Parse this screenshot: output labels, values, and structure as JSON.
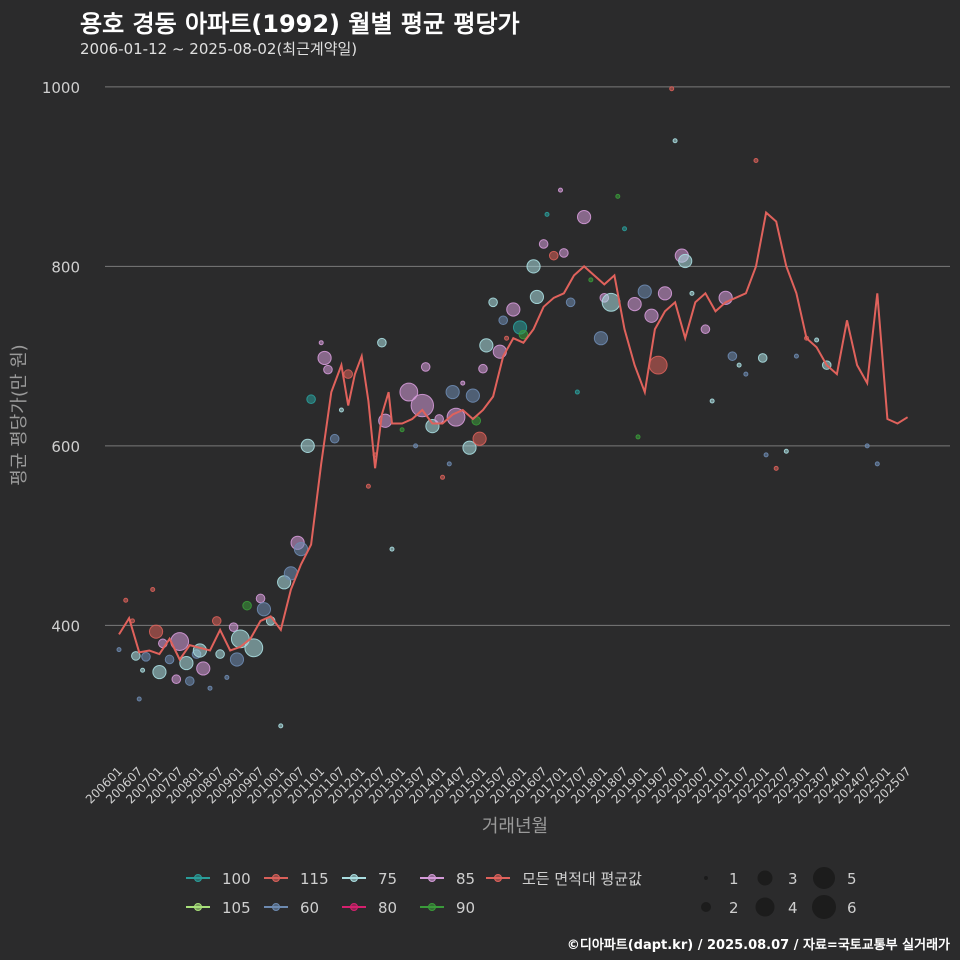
{
  "header": {
    "title": "용호 경동 아파트(1992) 월별 평균 평당가",
    "subtitle": "2006-01-12 ~ 2025-08-02(최근계약일)"
  },
  "footer": {
    "credit": "©디아파트(dapt.kr) / 2025.08.07 / 자료=국토교통부 실거래가"
  },
  "colors": {
    "background": "#2b2b2c",
    "grid": "#7a7a7a",
    "avg_line": "#e0625c",
    "axis_text": "#cfcfcf",
    "axis_title": "#9a9a9a"
  },
  "chart_data": {
    "type": "line",
    "title": "용호 경동 아파트(1992) 월별 평균 평당가",
    "xlabel": "거래년월",
    "ylabel": "평균 평당가(만 원)",
    "ylim": [
      250,
      1030
    ],
    "yticks": [
      400,
      600,
      800,
      1000
    ],
    "xlim": [
      "200601",
      "202508"
    ],
    "xticks": [
      "200601",
      "200607",
      "200701",
      "200707",
      "200801",
      "200807",
      "200901",
      "200907",
      "201001",
      "201007",
      "201101",
      "201107",
      "201201",
      "201207",
      "201301",
      "201307",
      "201401",
      "201407",
      "201501",
      "201507",
      "201601",
      "201607",
      "201701",
      "201707",
      "201801",
      "201807",
      "201901",
      "201907",
      "202001",
      "202007",
      "202101",
      "202107",
      "202201",
      "202207",
      "202301",
      "202307",
      "202401",
      "202407",
      "202501",
      "202507"
    ],
    "legend_series": [
      {
        "name": "100",
        "color": "#2a9d9a"
      },
      {
        "name": "105",
        "color": "#a8e07a"
      },
      {
        "name": "115",
        "color": "#d9605a"
      },
      {
        "name": "60",
        "color": "#6d8ab0"
      },
      {
        "name": "75",
        "color": "#a9dde0"
      },
      {
        "name": "80",
        "color": "#d6206e"
      },
      {
        "name": "85",
        "color": "#d49ad8"
      },
      {
        "name": "90",
        "color": "#3a9a3a"
      }
    ],
    "avg_series_name": "모든 면적대 평균값",
    "size_legend": {
      "values": [
        1,
        2,
        3,
        4,
        5,
        6
      ]
    },
    "avg_series": [
      [
        "200601",
        390
      ],
      [
        "200604",
        408
      ],
      [
        "200607",
        370
      ],
      [
        "200610",
        372
      ],
      [
        "200701",
        368
      ],
      [
        "200704",
        385
      ],
      [
        "200707",
        362
      ],
      [
        "200710",
        378
      ],
      [
        "200801",
        375
      ],
      [
        "200804",
        372
      ],
      [
        "200807",
        395
      ],
      [
        "200810",
        372
      ],
      [
        "200901",
        376
      ],
      [
        "200904",
        385
      ],
      [
        "200907",
        405
      ],
      [
        "200910",
        410
      ],
      [
        "201001",
        395
      ],
      [
        "201004",
        440
      ],
      [
        "201007",
        468
      ],
      [
        "201010",
        490
      ],
      [
        "201101",
        580
      ],
      [
        "201104",
        660
      ],
      [
        "201107",
        690
      ],
      [
        "201109",
        645
      ],
      [
        "201111",
        680
      ],
      [
        "201201",
        700
      ],
      [
        "201203",
        650
      ],
      [
        "201205",
        575
      ],
      [
        "201207",
        635
      ],
      [
        "201209",
        660
      ],
      [
        "201210",
        625
      ],
      [
        "201301",
        625
      ],
      [
        "201304",
        630
      ],
      [
        "201307",
        640
      ],
      [
        "201310",
        625
      ],
      [
        "201401",
        625
      ],
      [
        "201404",
        635
      ],
      [
        "201407",
        640
      ],
      [
        "201410",
        630
      ],
      [
        "201501",
        640
      ],
      [
        "201504",
        655
      ],
      [
        "201507",
        700
      ],
      [
        "201510",
        720
      ],
      [
        "201601",
        715
      ],
      [
        "201604",
        730
      ],
      [
        "201607",
        755
      ],
      [
        "201610",
        765
      ],
      [
        "201701",
        770
      ],
      [
        "201704",
        790
      ],
      [
        "201707",
        800
      ],
      [
        "201710",
        790
      ],
      [
        "201801",
        780
      ],
      [
        "201804",
        790
      ],
      [
        "201807",
        730
      ],
      [
        "201810",
        690
      ],
      [
        "201901",
        660
      ],
      [
        "201904",
        730
      ],
      [
        "201907",
        750
      ],
      [
        "201910",
        760
      ],
      [
        "202001",
        720
      ],
      [
        "202004",
        760
      ],
      [
        "202007",
        770
      ],
      [
        "202010",
        750
      ],
      [
        "202101",
        760
      ],
      [
        "202104",
        765
      ],
      [
        "202107",
        770
      ],
      [
        "202110",
        800
      ],
      [
        "202201",
        860
      ],
      [
        "202204",
        850
      ],
      [
        "202207",
        800
      ],
      [
        "202210",
        770
      ],
      [
        "202301",
        720
      ],
      [
        "202304",
        710
      ],
      [
        "202307",
        690
      ],
      [
        "202310",
        680
      ],
      [
        "202401",
        740
      ],
      [
        "202404",
        690
      ],
      [
        "202407",
        670
      ],
      [
        "202410",
        770
      ],
      [
        "202501",
        630
      ],
      [
        "202504",
        625
      ],
      [
        "202507",
        632
      ]
    ],
    "transactions": [
      [
        "200601",
        373,
        "60",
        1
      ],
      [
        "200603",
        428,
        "115",
        1
      ],
      [
        "200605",
        405,
        "115",
        1
      ],
      [
        "200606",
        366,
        "75",
        2
      ],
      [
        "200607",
        318,
        "60",
        1
      ],
      [
        "200608",
        350,
        "75",
        1
      ],
      [
        "200609",
        365,
        "60",
        2
      ],
      [
        "200611",
        440,
        "115",
        1
      ],
      [
        "200612",
        393,
        "115",
        3
      ],
      [
        "200701",
        348,
        "75",
        3
      ],
      [
        "200702",
        380,
        "85",
        2
      ],
      [
        "200704",
        362,
        "60",
        2
      ],
      [
        "200706",
        340,
        "85",
        2
      ],
      [
        "200707",
        382,
        "85",
        4
      ],
      [
        "200709",
        358,
        "75",
        3
      ],
      [
        "200710",
        338,
        "60",
        2
      ],
      [
        "200712",
        368,
        "60",
        2
      ],
      [
        "200801",
        372,
        "75",
        3
      ],
      [
        "200802",
        352,
        "85",
        3
      ],
      [
        "200804",
        330,
        "60",
        1
      ],
      [
        "200806",
        405,
        "115",
        2
      ],
      [
        "200807",
        368,
        "75",
        2
      ],
      [
        "200809",
        342,
        "60",
        1
      ],
      [
        "200811",
        398,
        "85",
        2
      ],
      [
        "200812",
        362,
        "60",
        3
      ],
      [
        "200901",
        385,
        "75",
        4
      ],
      [
        "200903",
        422,
        "90",
        2
      ],
      [
        "200905",
        375,
        "75",
        4
      ],
      [
        "200907",
        430,
        "85",
        2
      ],
      [
        "200908",
        418,
        "60",
        3
      ],
      [
        "200910",
        405,
        "75",
        2
      ],
      [
        "201001",
        288,
        "75",
        1
      ],
      [
        "201002",
        448,
        "75",
        3
      ],
      [
        "201004",
        458,
        "60",
        3
      ],
      [
        "201006",
        492,
        "85",
        3
      ],
      [
        "201007",
        485,
        "60",
        3
      ],
      [
        "201009",
        600,
        "75",
        3
      ],
      [
        "201010",
        652,
        "100",
        2
      ],
      [
        "201101",
        715,
        "85",
        1
      ],
      [
        "201102",
        698,
        "85",
        3
      ],
      [
        "201103",
        685,
        "85",
        2
      ],
      [
        "201105",
        608,
        "60",
        2
      ],
      [
        "201107",
        640,
        "75",
        1
      ],
      [
        "201109",
        680,
        "115",
        2
      ],
      [
        "201203",
        555,
        "115",
        1
      ],
      [
        "201205",
        590,
        "115",
        1
      ],
      [
        "201207",
        715,
        "75",
        2
      ],
      [
        "201208",
        628,
        "85",
        3
      ],
      [
        "201210",
        485,
        "75",
        1
      ],
      [
        "201301",
        618,
        "90",
        1
      ],
      [
        "201303",
        660,
        "85",
        4
      ],
      [
        "201305",
        600,
        "60",
        1
      ],
      [
        "201307",
        645,
        "85",
        5
      ],
      [
        "201308",
        688,
        "85",
        2
      ],
      [
        "201310",
        622,
        "75",
        3
      ],
      [
        "201312",
        630,
        "85",
        2
      ],
      [
        "201401",
        565,
        "115",
        1
      ],
      [
        "201403",
        580,
        "60",
        1
      ],
      [
        "201404",
        660,
        "60",
        3
      ],
      [
        "201405",
        632,
        "85",
        4
      ],
      [
        "201407",
        670,
        "85",
        1
      ],
      [
        "201409",
        598,
        "75",
        3
      ],
      [
        "201410",
        656,
        "60",
        3
      ],
      [
        "201411",
        628,
        "90",
        2
      ],
      [
        "201412",
        608,
        "115",
        3
      ],
      [
        "201501",
        686,
        "85",
        2
      ],
      [
        "201502",
        712,
        "75",
        3
      ],
      [
        "201504",
        760,
        "75",
        2
      ],
      [
        "201506",
        705,
        "85",
        3
      ],
      [
        "201507",
        740,
        "60",
        2
      ],
      [
        "201508",
        720,
        "115",
        1
      ],
      [
        "201510",
        752,
        "85",
        3
      ],
      [
        "201512",
        732,
        "100",
        3
      ],
      [
        "201601",
        724,
        "90",
        2
      ],
      [
        "201604",
        800,
        "75",
        3
      ],
      [
        "201605",
        766,
        "75",
        3
      ],
      [
        "201607",
        825,
        "85",
        2
      ],
      [
        "201608",
        858,
        "100",
        1
      ],
      [
        "201610",
        812,
        "115",
        2
      ],
      [
        "201612",
        885,
        "85",
        1
      ],
      [
        "201701",
        815,
        "85",
        2
      ],
      [
        "201703",
        760,
        "60",
        2
      ],
      [
        "201705",
        660,
        "100",
        1
      ],
      [
        "201707",
        855,
        "85",
        3
      ],
      [
        "201709",
        785,
        "90",
        1
      ],
      [
        "201712",
        720,
        "60",
        3
      ],
      [
        "201801",
        765,
        "85",
        2
      ],
      [
        "201803",
        760,
        "75",
        4
      ],
      [
        "201805",
        878,
        "90",
        1
      ],
      [
        "201807",
        842,
        "100",
        1
      ],
      [
        "201810",
        758,
        "85",
        3
      ],
      [
        "201811",
        610,
        "90",
        1
      ],
      [
        "201901",
        772,
        "60",
        3
      ],
      [
        "201903",
        745,
        "85",
        3
      ],
      [
        "201905",
        690,
        "115",
        4
      ],
      [
        "201907",
        770,
        "85",
        3
      ],
      [
        "201909",
        998,
        "115",
        1
      ],
      [
        "201910",
        940,
        "75",
        1
      ],
      [
        "201912",
        812,
        "85",
        3
      ],
      [
        "202001",
        806,
        "75",
        3
      ],
      [
        "202003",
        770,
        "75",
        1
      ],
      [
        "202007",
        730,
        "85",
        2
      ],
      [
        "202009",
        650,
        "75",
        1
      ],
      [
        "202101",
        765,
        "85",
        3
      ],
      [
        "202103",
        700,
        "60",
        2
      ],
      [
        "202105",
        690,
        "75",
        1
      ],
      [
        "202107",
        680,
        "60",
        1
      ],
      [
        "202110",
        918,
        "115",
        1
      ],
      [
        "202112",
        698,
        "75",
        2
      ],
      [
        "202201",
        590,
        "60",
        1
      ],
      [
        "202204",
        575,
        "115",
        1
      ],
      [
        "202207",
        594,
        "75",
        1
      ],
      [
        "202210",
        700,
        "60",
        1
      ],
      [
        "202301",
        720,
        "115",
        1
      ],
      [
        "202304",
        718,
        "75",
        1
      ],
      [
        "202307",
        690,
        "75",
        2
      ],
      [
        "202407",
        600,
        "60",
        1
      ],
      [
        "202410",
        580,
        "60",
        1
      ]
    ]
  }
}
